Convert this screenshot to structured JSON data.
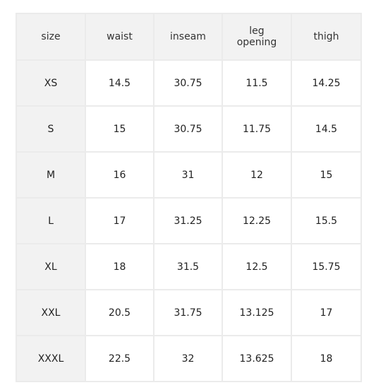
{
  "headers": [
    "size",
    "waist",
    "inseam",
    "leg opening",
    "thigh"
  ],
  "rows": [
    [
      "XS",
      "14.5",
      "30.75",
      "11.5",
      "14.25"
    ],
    [
      "S",
      "15",
      "30.75",
      "11.75",
      "14.5"
    ],
    [
      "M",
      "16",
      "31",
      "12",
      "15"
    ],
    [
      "L",
      "17",
      "31.25",
      "12.25",
      "15.5"
    ],
    [
      "XL",
      "18",
      "31.5",
      "12.5",
      "15.75"
    ],
    [
      "XXL",
      "20.5",
      "31.75",
      "13.125",
      "17"
    ],
    [
      "XXXL",
      "22.5",
      "32",
      "13.625",
      "18"
    ]
  ],
  "colors": {
    "header_background": "#f2f2f2",
    "size_column_background": "#f2f2f2",
    "cell_background": "#ffffff",
    "border": "#ebebeb",
    "text": "#222222"
  }
}
